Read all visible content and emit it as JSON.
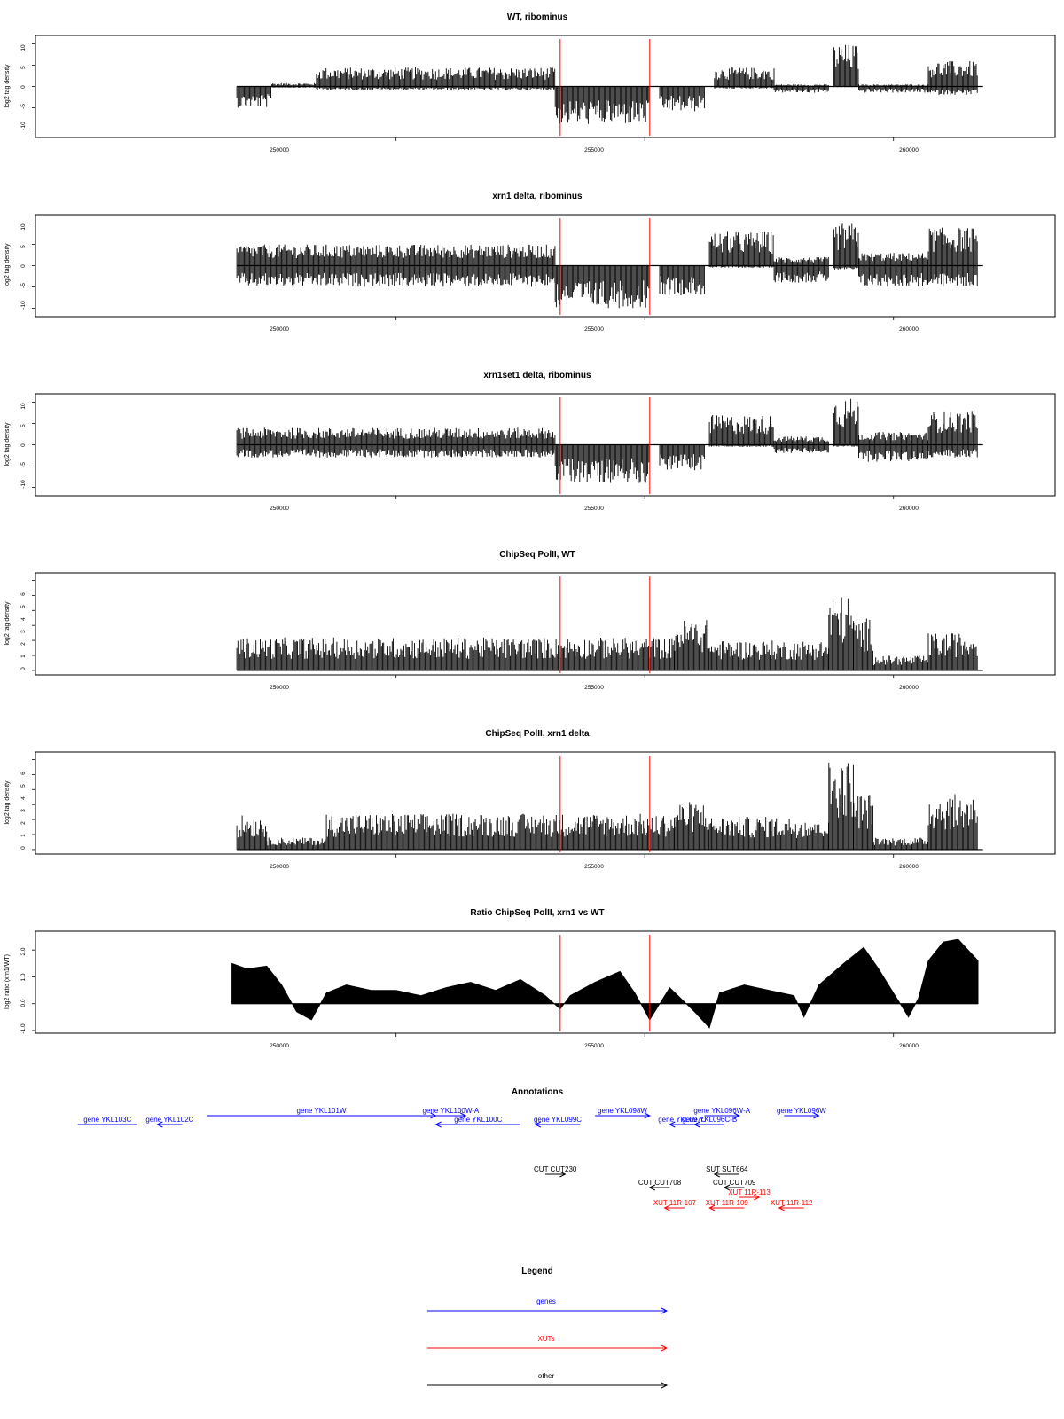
{
  "colors": {
    "gene": "#0000ff",
    "xut": "#ff0000",
    "other": "#000000",
    "marker": "#ff0000",
    "data": "#000000"
  },
  "chart_data": [
    {
      "type": "bar",
      "title": "WT, ribominus",
      "ylabel": "log2 tag density",
      "xlim": [
        243500,
        262500
      ],
      "ylim": [
        -12,
        12
      ],
      "yticks": [
        "-10",
        "-5",
        "0",
        "5",
        "10"
      ],
      "ytick_values": [
        -10,
        -5,
        0,
        5,
        10
      ],
      "xticks": [
        "250000",
        "255000",
        "260000"
      ],
      "xtick_values": [
        250000,
        255000,
        260000
      ],
      "markers": [
        253300,
        255100
      ],
      "grid": false,
      "profile": [
        {
          "x0": 246800,
          "x1": 247500,
          "top": 0,
          "bot": -5
        },
        {
          "x0": 247500,
          "x2": 248400,
          "x1": 248400,
          "top": 0.8,
          "bot": -0.3
        },
        {
          "x0": 248400,
          "x1": 253200,
          "top": 4.5,
          "bot": -0.8
        },
        {
          "x0": 253200,
          "x1": 255100,
          "top": 0,
          "bot": -9
        },
        {
          "x0": 255300,
          "x1": 256200,
          "top": 0,
          "bot": -6
        },
        {
          "x0": 256400,
          "x1": 257600,
          "top": 4.5,
          "bot": -0.5
        },
        {
          "x0": 257600,
          "x1": 258700,
          "top": 0.5,
          "bot": -1.5
        },
        {
          "x0": 258800,
          "x1": 259300,
          "top": 10,
          "bot": -0.2
        },
        {
          "x0": 259300,
          "x1": 260700,
          "top": 0.5,
          "bot": -1.5
        },
        {
          "x0": 260700,
          "x1": 261700,
          "top": 6,
          "bot": -2
        }
      ]
    },
    {
      "type": "bar",
      "title": "xrn1 delta, ribominus",
      "ylabel": "log2 tag density",
      "xlim": [
        243500,
        262500
      ],
      "ylim": [
        -12,
        12
      ],
      "yticks": [
        "-10",
        "-5",
        "0",
        "5",
        "10"
      ],
      "ytick_values": [
        -10,
        -5,
        0,
        5,
        10
      ],
      "xticks": [
        "250000",
        "255000",
        "260000"
      ],
      "xtick_values": [
        250000,
        255000,
        260000
      ],
      "markers": [
        253300,
        255100
      ],
      "grid": false,
      "profile": [
        {
          "x0": 246800,
          "x1": 253200,
          "top": 5,
          "bot": -5
        },
        {
          "x0": 253200,
          "x1": 255100,
          "top": 0,
          "bot": -10
        },
        {
          "x0": 255300,
          "x1": 256200,
          "top": 0,
          "bot": -7
        },
        {
          "x0": 256300,
          "x1": 257600,
          "top": 8,
          "bot": -0.5
        },
        {
          "x0": 257600,
          "x1": 258700,
          "top": 2,
          "bot": -4
        },
        {
          "x0": 258800,
          "x1": 259300,
          "top": 10,
          "bot": -1
        },
        {
          "x0": 259300,
          "x1": 260700,
          "top": 3,
          "bot": -5
        },
        {
          "x0": 260700,
          "x1": 261700,
          "top": 9,
          "bot": -5
        }
      ]
    },
    {
      "type": "bar",
      "title": "xrn1set1 delta, ribominus",
      "ylabel": "log2 tag density",
      "xlim": [
        243500,
        262500
      ],
      "ylim": [
        -12,
        12
      ],
      "yticks": [
        "-10",
        "-5",
        "0",
        "5",
        "10"
      ],
      "ytick_values": [
        -10,
        -5,
        0,
        5,
        10
      ],
      "xticks": [
        "250000",
        "255000",
        "260000"
      ],
      "xtick_values": [
        250000,
        255000,
        260000
      ],
      "markers": [
        253300,
        255100
      ],
      "grid": false,
      "profile": [
        {
          "x0": 246800,
          "x1": 253200,
          "top": 4,
          "bot": -3
        },
        {
          "x0": 253200,
          "x1": 255100,
          "top": 0,
          "bot": -9
        },
        {
          "x0": 255300,
          "x1": 256200,
          "top": 0,
          "bot": -6
        },
        {
          "x0": 256300,
          "x1": 257600,
          "top": 7,
          "bot": -0.5
        },
        {
          "x0": 257600,
          "x1": 258700,
          "top": 2,
          "bot": -2
        },
        {
          "x0": 258800,
          "x1": 259300,
          "top": 11,
          "bot": -0.5
        },
        {
          "x0": 259300,
          "x1": 260700,
          "top": 3,
          "bot": -4
        },
        {
          "x0": 260700,
          "x1": 261700,
          "top": 8,
          "bot": -3
        }
      ]
    },
    {
      "type": "bar",
      "title": "ChipSeq PolII, WT",
      "ylabel": "log2 tag density",
      "xlim": [
        243500,
        262500
      ],
      "ylim": [
        -0.3,
        6.5
      ],
      "yticks": [
        "0",
        "1",
        "2",
        "3",
        "4",
        "5",
        "6"
      ],
      "ytick_values": [
        0,
        1,
        2,
        3,
        4,
        5,
        6
      ],
      "xticks": [
        "250000",
        "255000",
        "260000"
      ],
      "xtick_values": [
        250000,
        255000,
        260000
      ],
      "markers": [
        253300,
        255100
      ],
      "grid": false,
      "profile": [
        {
          "x0": 246800,
          "x1": 255600,
          "top": 2.2,
          "bot": 0
        },
        {
          "x0": 255600,
          "x1": 256300,
          "top": 3.4,
          "bot": 0
        },
        {
          "x0": 256300,
          "x1": 258700,
          "top": 2,
          "bot": 0
        },
        {
          "x0": 258700,
          "x1": 259200,
          "top": 5,
          "bot": 0
        },
        {
          "x0": 259200,
          "x1": 259600,
          "top": 3.5,
          "bot": 0
        },
        {
          "x0": 259600,
          "x1": 260700,
          "top": 1,
          "bot": 0
        },
        {
          "x0": 260700,
          "x1": 261700,
          "top": 2.5,
          "bot": 0
        }
      ]
    },
    {
      "type": "bar",
      "title": "ChipSeq PolII, xrn1 delta",
      "ylabel": "log2 tag density",
      "xlim": [
        243500,
        262500
      ],
      "ylim": [
        -0.3,
        6.5
      ],
      "yticks": [
        "0",
        "1",
        "2",
        "3",
        "4",
        "5",
        "6"
      ],
      "ytick_values": [
        0,
        1,
        2,
        3,
        4,
        5,
        6
      ],
      "xticks": [
        "250000",
        "255000",
        "260000"
      ],
      "xtick_values": [
        250000,
        255000,
        260000
      ],
      "markers": [
        253300,
        255100
      ],
      "grid": false,
      "profile": [
        {
          "x0": 246800,
          "x1": 247400,
          "top": 2.3,
          "bot": 0
        },
        {
          "x0": 247400,
          "x1": 248600,
          "top": 0.8,
          "bot": 0
        },
        {
          "x0": 248600,
          "x1": 255600,
          "top": 2.4,
          "bot": 0
        },
        {
          "x0": 255600,
          "x1": 256300,
          "top": 3.2,
          "bot": 0
        },
        {
          "x0": 256300,
          "x1": 258700,
          "top": 2.2,
          "bot": 0
        },
        {
          "x0": 258700,
          "x1": 259200,
          "top": 6,
          "bot": 0
        },
        {
          "x0": 259200,
          "x1": 259600,
          "top": 3.8,
          "bot": 0
        },
        {
          "x0": 259600,
          "x1": 260700,
          "top": 0.8,
          "bot": 0
        },
        {
          "x0": 260700,
          "x1": 261700,
          "top": 3.7,
          "bot": 0
        }
      ]
    },
    {
      "type": "area",
      "title": "Ratio ChipSeq PolII, xrn1 vs WT",
      "ylabel": "log2 ratio (xrn1/WT)",
      "xlim": [
        243500,
        262500
      ],
      "ylim": [
        -1.1,
        2.7
      ],
      "yticks": [
        "-1.0",
        "0.0",
        "1.0",
        "2.0"
      ],
      "ytick_values": [
        -1,
        0,
        1,
        2
      ],
      "xticks": [
        "250000",
        "255000",
        "260000"
      ],
      "xtick_values": [
        250000,
        255000,
        260000
      ],
      "markers": [
        253300,
        255100
      ],
      "grid": false,
      "x": [
        246700,
        247000,
        247400,
        247700,
        248000,
        248300,
        248600,
        249000,
        249500,
        250000,
        250500,
        251000,
        251500,
        252000,
        252500,
        253000,
        253300,
        253500,
        254000,
        254500,
        254800,
        255100,
        255500,
        256000,
        256300,
        256500,
        257000,
        257500,
        258000,
        258200,
        258500,
        259000,
        259400,
        259700,
        260000,
        260300,
        260500,
        260700,
        261000,
        261300,
        261700
      ],
      "values": [
        1.5,
        1.3,
        1.4,
        0.7,
        -0.3,
        -0.6,
        0.4,
        0.7,
        0.5,
        0.5,
        0.3,
        0.6,
        0.8,
        0.5,
        0.9,
        0.3,
        -0.2,
        0.3,
        0.8,
        1.2,
        0.4,
        -0.6,
        0.6,
        -0.3,
        -0.9,
        0.4,
        0.7,
        0.5,
        0.3,
        -0.5,
        0.7,
        1.5,
        2.1,
        1.3,
        0.4,
        -0.5,
        0.2,
        1.6,
        2.3,
        2.4,
        1.6
      ]
    }
  ],
  "annotations": {
    "title": "Annotations",
    "xlim": [
      243500,
      262500
    ],
    "items": [
      {
        "label": "gene YKL103C",
        "kind": "gene",
        "x0": 243600,
        "x1": 244800,
        "row": 0,
        "dir": "none"
      },
      {
        "label": "gene YKL102C",
        "kind": "gene",
        "x0": 245200,
        "x1": 245700,
        "row": 0,
        "dir": "left"
      },
      {
        "label": "gene YKL101W",
        "kind": "gene",
        "x0": 246200,
        "x1": 250800,
        "row": -1,
        "dir": "right"
      },
      {
        "label": "gene YKL100W-A",
        "kind": "gene",
        "x0": 250800,
        "x1": 251400,
        "row": -1,
        "dir": "right"
      },
      {
        "label": "gene YKL100C",
        "kind": "gene",
        "x0": 250800,
        "x1": 252500,
        "row": 0,
        "dir": "left"
      },
      {
        "label": "gene YKL099C",
        "kind": "gene",
        "x0": 252800,
        "x1": 253700,
        "row": 0,
        "dir": "left"
      },
      {
        "label": "gene YKL098W",
        "kind": "gene",
        "x0": 254000,
        "x1": 255100,
        "row": -1,
        "dir": "right"
      },
      {
        "label": "gene YKL097C",
        "kind": "gene",
        "x0": 255500,
        "x1": 256000,
        "row": 0,
        "dir": "left"
      },
      {
        "label": "gene YKL096W-A",
        "kind": "gene",
        "x0": 256200,
        "x1": 256900,
        "row": -1,
        "dir": "right"
      },
      {
        "label": "gene YKL096C-B",
        "kind": "gene",
        "x0": 256000,
        "x1": 256600,
        "row": 0,
        "dir": "left"
      },
      {
        "label": "gene YKL096W",
        "kind": "gene",
        "x0": 257800,
        "x1": 258500,
        "row": -1,
        "dir": "right"
      },
      {
        "label": "CUT CUT230",
        "kind": "other",
        "x0": 253000,
        "x1": 253400,
        "row": 1,
        "dir": "right"
      },
      {
        "label": "SUT SUT664",
        "kind": "other",
        "x0": 256400,
        "x1": 256900,
        "row": 1,
        "dir": "left"
      },
      {
        "label": "CUT CUT708",
        "kind": "other",
        "x0": 255100,
        "x1": 255500,
        "row": 2,
        "dir": "left"
      },
      {
        "label": "CUT CUT709",
        "kind": "other",
        "x0": 256600,
        "x1": 257000,
        "row": 2,
        "dir": "left"
      },
      {
        "label": "XUT 11R-113",
        "kind": "xut",
        "x0": 256900,
        "x1": 257300,
        "row": 3,
        "dir": "right"
      },
      {
        "label": "XUT 11R-107",
        "kind": "xut",
        "x0": 255400,
        "x1": 255800,
        "row": 4,
        "dir": "left"
      },
      {
        "label": "XUT 11R-109",
        "kind": "xut",
        "x0": 256300,
        "x1": 257000,
        "row": 4,
        "dir": "left"
      },
      {
        "label": "XUT 11R-112",
        "kind": "xut",
        "x0": 257700,
        "x1": 258200,
        "row": 4,
        "dir": "left"
      }
    ]
  },
  "legend": {
    "title": "Legend",
    "entries": [
      {
        "label": "genes",
        "kind": "gene"
      },
      {
        "label": "XUTs",
        "kind": "xut"
      },
      {
        "label": "other",
        "kind": "other"
      }
    ]
  }
}
